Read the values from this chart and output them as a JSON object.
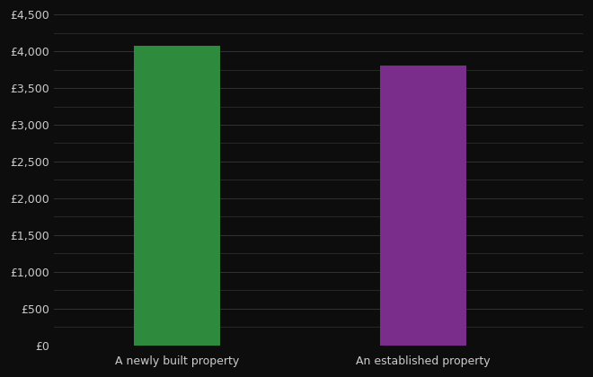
{
  "categories": [
    "A newly built property",
    "An established property"
  ],
  "values": [
    4075,
    3800
  ],
  "bar_colors": [
    "#2e8b3e",
    "#7b2d8b"
  ],
  "background_color": "#0d0d0d",
  "text_color": "#cccccc",
  "grid_color": "#333333",
  "ylim": [
    0,
    4500
  ],
  "yticks": [
    0,
    500,
    1000,
    1500,
    2000,
    2500,
    3000,
    3500,
    4000,
    4500
  ],
  "ytick_labels": [
    "£0",
    "£500",
    "£1,000",
    "£1,500",
    "£2,000",
    "£2,500",
    "£3,000",
    "£3,500",
    "£4,000",
    "£4,500"
  ],
  "minor_yticks": [
    250,
    750,
    1250,
    1750,
    2250,
    2750,
    3250,
    3750,
    4250
  ],
  "bar_width": 0.35,
  "x_positions": [
    1,
    2
  ],
  "xlim": [
    0.5,
    2.65
  ]
}
